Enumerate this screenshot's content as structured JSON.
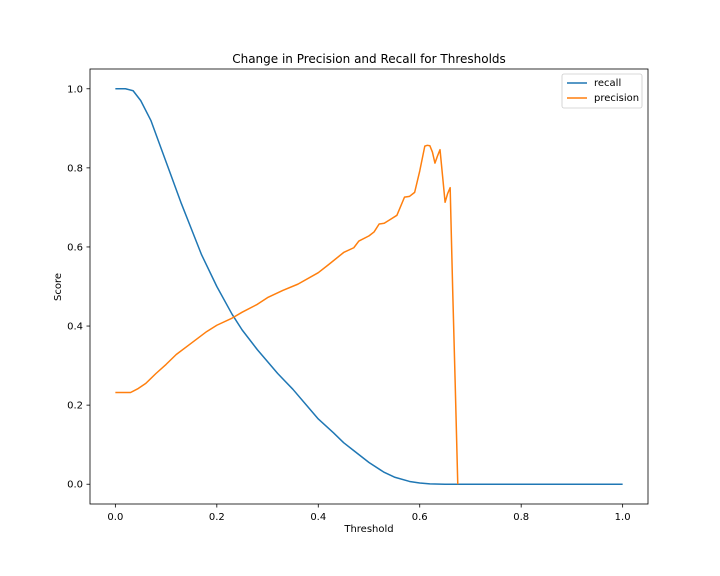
{
  "chart_data": {
    "type": "line",
    "title": "Change in Precision and Recall for Thresholds",
    "xlabel": "Threshold",
    "ylabel": "Score",
    "xlim": [
      -0.05,
      1.05
    ],
    "ylim": [
      -0.05,
      1.05
    ],
    "xticks": [
      "0.0",
      "0.2",
      "0.4",
      "0.6",
      "0.8",
      "1.0"
    ],
    "yticks": [
      "0.0",
      "0.2",
      "0.4",
      "0.6",
      "0.8",
      "1.0"
    ],
    "grid": false,
    "legend_position": "top-right",
    "series": [
      {
        "name": "recall",
        "color": "#1f77b4",
        "x": [
          0.0,
          0.02,
          0.035,
          0.05,
          0.07,
          0.09,
          0.11,
          0.13,
          0.15,
          0.17,
          0.2,
          0.23,
          0.25,
          0.28,
          0.3,
          0.32,
          0.35,
          0.38,
          0.4,
          0.43,
          0.45,
          0.47,
          0.5,
          0.53,
          0.55,
          0.58,
          0.6,
          0.62,
          0.65,
          0.7,
          0.8,
          0.9,
          1.0
        ],
        "y": [
          1.0,
          1.0,
          0.995,
          0.97,
          0.92,
          0.85,
          0.78,
          0.71,
          0.645,
          0.58,
          0.5,
          0.43,
          0.39,
          0.34,
          0.31,
          0.28,
          0.24,
          0.195,
          0.165,
          0.13,
          0.105,
          0.085,
          0.055,
          0.03,
          0.018,
          0.007,
          0.003,
          0.001,
          0.0,
          0.0,
          0.0,
          0.0,
          0.0
        ]
      },
      {
        "name": "precision",
        "color": "#ff7f0e",
        "x": [
          0.0,
          0.015,
          0.03,
          0.045,
          0.06,
          0.08,
          0.1,
          0.12,
          0.15,
          0.18,
          0.2,
          0.23,
          0.25,
          0.28,
          0.3,
          0.33,
          0.36,
          0.4,
          0.42,
          0.45,
          0.47,
          0.48,
          0.5,
          0.51,
          0.52,
          0.53,
          0.545,
          0.555,
          0.57,
          0.58,
          0.59,
          0.6,
          0.61,
          0.615,
          0.62,
          0.625,
          0.63,
          0.635,
          0.64,
          0.645,
          0.65,
          0.655,
          0.66,
          0.665,
          0.67,
          0.675
        ],
        "y": [
          0.232,
          0.232,
          0.232,
          0.242,
          0.255,
          0.28,
          0.303,
          0.328,
          0.357,
          0.386,
          0.402,
          0.42,
          0.435,
          0.455,
          0.472,
          0.49,
          0.506,
          0.535,
          0.555,
          0.586,
          0.598,
          0.615,
          0.628,
          0.638,
          0.658,
          0.66,
          0.672,
          0.68,
          0.726,
          0.728,
          0.738,
          0.792,
          0.855,
          0.857,
          0.856,
          0.84,
          0.812,
          0.83,
          0.846,
          0.78,
          0.713,
          0.735,
          0.75,
          0.49,
          0.25,
          0.0
        ]
      }
    ]
  }
}
